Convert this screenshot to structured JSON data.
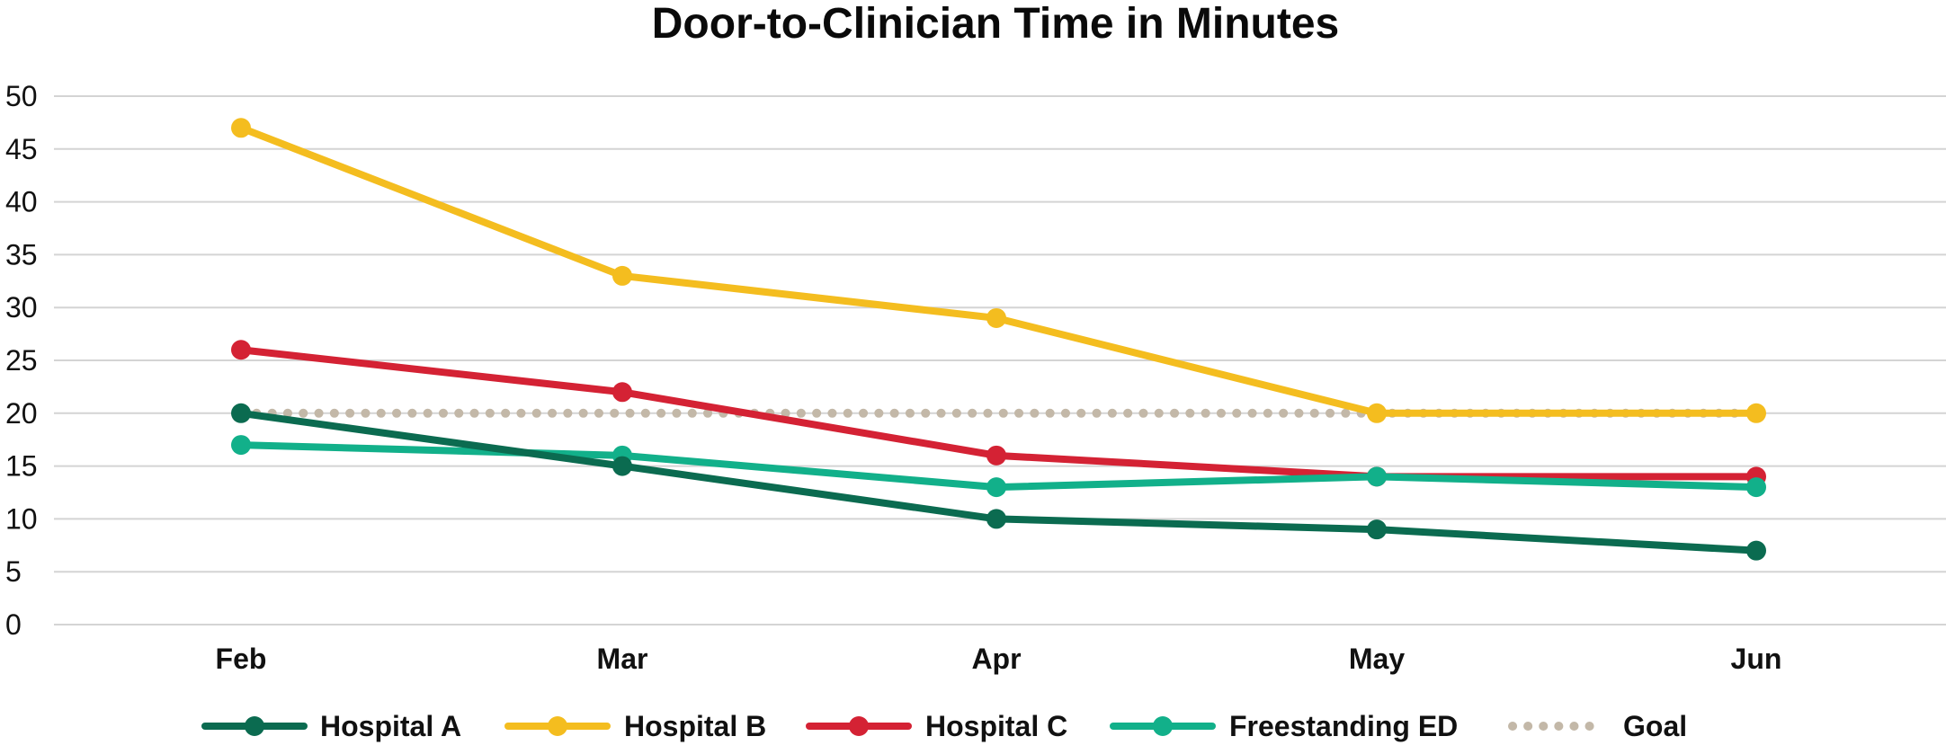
{
  "chart_data": {
    "type": "line",
    "title": "Door-to-Clinician Time in Minutes",
    "xlabel": "",
    "ylabel": "",
    "categories": [
      "Feb",
      "Mar",
      "Apr",
      "May",
      "Jun"
    ],
    "ylim": [
      0,
      50
    ],
    "yticks": [
      0,
      5,
      10,
      15,
      20,
      25,
      30,
      35,
      40,
      45,
      50
    ],
    "grid": true,
    "legend_position": "bottom",
    "series": [
      {
        "name": "Hospital A",
        "values": [
          20,
          15,
          10,
          9,
          7
        ],
        "color": "#0b6b50",
        "style": "solid-marker"
      },
      {
        "name": "Hospital B",
        "values": [
          47,
          33,
          29,
          20,
          20
        ],
        "color": "#f4bd1f",
        "style": "solid-marker"
      },
      {
        "name": "Hospital C",
        "values": [
          26,
          22,
          16,
          14,
          14
        ],
        "color": "#d42234",
        "style": "solid-marker"
      },
      {
        "name": "Freestanding ED",
        "values": [
          17,
          16,
          13,
          14,
          13
        ],
        "color": "#12b08a",
        "style": "solid-marker"
      },
      {
        "name": "Goal",
        "values": [
          20,
          20,
          20,
          20,
          20
        ],
        "color": "#c3b8a8",
        "style": "dotted"
      }
    ]
  }
}
